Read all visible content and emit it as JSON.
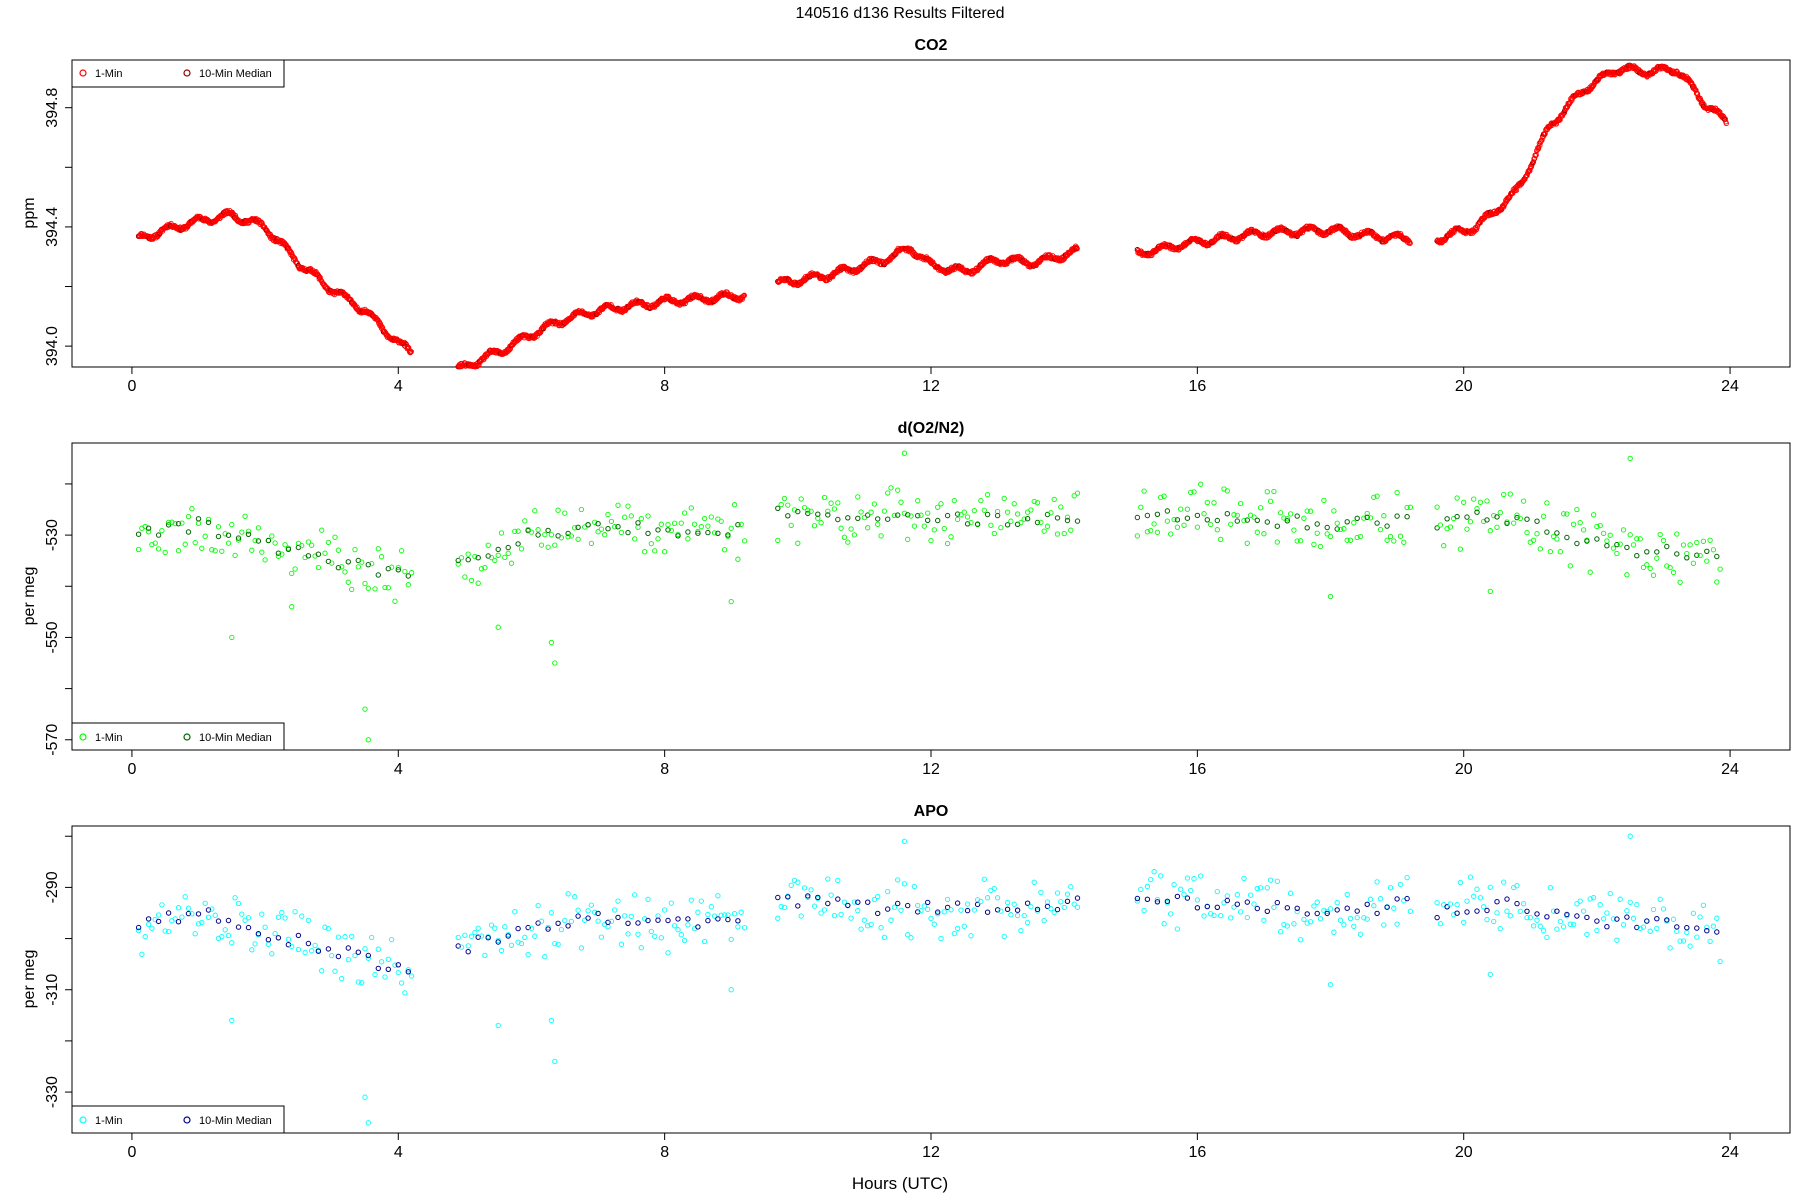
{
  "figure": {
    "title": "140516   d136   Results Filtered",
    "xlabel": "Hours (UTC)"
  },
  "chart_data": [
    {
      "type": "scatter",
      "title": "CO2",
      "ylabel": "ppm",
      "xlim": [
        -0.9,
        24.9
      ],
      "ylim": [
        393.93,
        394.96
      ],
      "x_ticks": [
        0,
        4,
        8,
        12,
        16,
        20,
        24
      ],
      "y_ticks": [
        394.0,
        394.4,
        394.8
      ],
      "y_tick_labels": [
        "394.0",
        "394.4",
        "394.8"
      ],
      "y_minor_ticks": [
        394.2,
        394.6
      ],
      "legend": {
        "position": "top-left",
        "entries": [
          "1-Min",
          "10-Min Median"
        ]
      },
      "series": [
        {
          "name": "1-Min",
          "color": "#ff0000"
        },
        {
          "name": "10-Min Median",
          "color": "#8b0000"
        }
      ],
      "profile": [
        [
          0.1,
          394.36
        ],
        [
          0.5,
          394.39
        ],
        [
          1.0,
          394.42
        ],
        [
          1.5,
          394.44
        ],
        [
          2.0,
          394.4
        ],
        [
          2.5,
          394.28
        ],
        [
          3.0,
          394.19
        ],
        [
          3.5,
          394.12
        ],
        [
          4.0,
          394.01
        ],
        [
          4.2,
          393.98
        ],
        [
          4.9,
          393.92
        ],
        [
          5.2,
          393.95
        ],
        [
          5.6,
          393.99
        ],
        [
          6.0,
          394.04
        ],
        [
          6.5,
          394.09
        ],
        [
          7.0,
          394.12
        ],
        [
          8.0,
          394.15
        ],
        [
          9.2,
          394.17
        ],
        [
          9.7,
          394.21
        ],
        [
          10.5,
          394.24
        ],
        [
          11.3,
          394.29
        ],
        [
          11.7,
          394.33
        ],
        [
          12.0,
          394.27
        ],
        [
          12.5,
          394.25
        ],
        [
          13.0,
          394.29
        ],
        [
          13.6,
          394.28
        ],
        [
          14.2,
          394.32
        ],
        [
          15.1,
          394.31
        ],
        [
          16.0,
          394.35
        ],
        [
          17.0,
          394.38
        ],
        [
          18.0,
          394.39
        ],
        [
          18.6,
          394.37
        ],
        [
          19.2,
          394.36
        ],
        [
          19.6,
          394.36
        ],
        [
          20.2,
          394.4
        ],
        [
          20.8,
          394.52
        ],
        [
          21.3,
          394.74
        ],
        [
          21.8,
          394.86
        ],
        [
          22.3,
          394.93
        ],
        [
          22.8,
          394.92
        ],
        [
          23.2,
          394.93
        ],
        [
          23.6,
          394.82
        ],
        [
          23.95,
          394.75
        ]
      ]
    },
    {
      "type": "scatter",
      "title": "d(O2/N2)",
      "ylabel": "per meg",
      "xlim": [
        -0.9,
        24.9
      ],
      "ylim": [
        -572,
        -512
      ],
      "x_ticks": [
        0,
        4,
        8,
        12,
        16,
        20,
        24
      ],
      "y_ticks": [
        -530,
        -550,
        -570
      ],
      "y_tick_labels": [
        "-530",
        "-550",
        "-570"
      ],
      "y_minor_ticks": [
        -520,
        -540,
        -560
      ],
      "legend": {
        "position": "bottom-left",
        "entries": [
          "1-Min",
          "10-Min Median"
        ]
      },
      "series": [
        {
          "name": "1-Min",
          "color": "#00ff00"
        },
        {
          "name": "10-Min Median",
          "color": "#006400"
        }
      ],
      "profile": [
        [
          0.1,
          -530
        ],
        [
          1.0,
          -528
        ],
        [
          2.0,
          -532
        ],
        [
          3.0,
          -535
        ],
        [
          3.8,
          -537
        ],
        [
          4.2,
          -539
        ],
        [
          4.9,
          -535
        ],
        [
          6.0,
          -530
        ],
        [
          7.0,
          -528
        ],
        [
          8.0,
          -529
        ],
        [
          9.2,
          -529
        ],
        [
          9.7,
          -525
        ],
        [
          11.0,
          -527
        ],
        [
          12.0,
          -526
        ],
        [
          13.0,
          -527
        ],
        [
          14.2,
          -527
        ],
        [
          15.1,
          -526
        ],
        [
          16.0,
          -526
        ],
        [
          17.0,
          -527
        ],
        [
          18.0,
          -528
        ],
        [
          19.2,
          -527
        ],
        [
          19.6,
          -528
        ],
        [
          20.5,
          -526
        ],
        [
          21.5,
          -530
        ],
        [
          22.5,
          -533
        ],
        [
          23.9,
          -534
        ]
      ],
      "outliers": [
        [
          1.5,
          -550
        ],
        [
          2.4,
          -544
        ],
        [
          3.5,
          -564
        ],
        [
          3.55,
          -570
        ],
        [
          6.3,
          -551
        ],
        [
          6.35,
          -555
        ],
        [
          5.5,
          -548
        ],
        [
          9.0,
          -543
        ],
        [
          18.0,
          -542
        ],
        [
          20.4,
          -541
        ],
        [
          11.6,
          -514
        ],
        [
          22.5,
          -515
        ]
      ]
    },
    {
      "type": "scatter",
      "title": "APO",
      "ylabel": "per meg",
      "xlim": [
        -0.9,
        24.9
      ],
      "ylim": [
        -338,
        -278
      ],
      "x_ticks": [
        0,
        4,
        8,
        12,
        16,
        20,
        24
      ],
      "y_ticks": [
        -290,
        -310,
        -330
      ],
      "y_tick_labels": [
        "-290",
        "-310",
        "-330"
      ],
      "y_minor_ticks": [
        -280,
        -300,
        -320
      ],
      "legend": {
        "position": "bottom-left",
        "entries": [
          "1-Min",
          "10-Min Median"
        ]
      },
      "series": [
        {
          "name": "1-Min",
          "color": "#00ffff"
        },
        {
          "name": "10-Min Median",
          "color": "#00008b"
        }
      ],
      "profile": [
        [
          0.1,
          -297
        ],
        [
          1.0,
          -295
        ],
        [
          2.0,
          -299
        ],
        [
          3.0,
          -302
        ],
        [
          3.8,
          -305
        ],
        [
          4.2,
          -306
        ],
        [
          4.9,
          -302
        ],
        [
          6.0,
          -298
        ],
        [
          7.0,
          -296
        ],
        [
          8.0,
          -297
        ],
        [
          9.2,
          -297
        ],
        [
          9.7,
          -292
        ],
        [
          11.0,
          -294
        ],
        [
          12.0,
          -294
        ],
        [
          13.0,
          -294
        ],
        [
          14.2,
          -293
        ],
        [
          15.1,
          -293
        ],
        [
          16.0,
          -293
        ],
        [
          17.0,
          -294
        ],
        [
          18.0,
          -295
        ],
        [
          19.2,
          -293
        ],
        [
          19.6,
          -295
        ],
        [
          20.5,
          -293
        ],
        [
          21.5,
          -296
        ],
        [
          22.5,
          -297
        ],
        [
          23.9,
          -298
        ]
      ],
      "outliers": [
        [
          1.5,
          -316
        ],
        [
          3.5,
          -331
        ],
        [
          3.55,
          -336
        ],
        [
          6.3,
          -316
        ],
        [
          6.35,
          -324
        ],
        [
          5.5,
          -317
        ],
        [
          9.0,
          -310
        ],
        [
          18.0,
          -309
        ],
        [
          20.4,
          -307
        ],
        [
          11.6,
          -281
        ],
        [
          22.5,
          -280
        ]
      ]
    }
  ]
}
